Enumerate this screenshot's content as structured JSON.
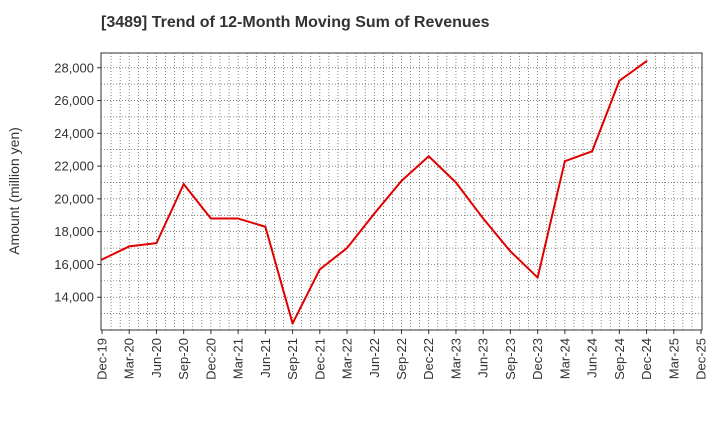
{
  "chart_data": {
    "type": "line",
    "title": "[3489]  Trend of 12-Month Moving Sum of Revenues",
    "xlabel": "",
    "ylabel": "Amount (million yen)",
    "ylim": [
      12000,
      28900
    ],
    "yticks": [
      14000,
      16000,
      18000,
      20000,
      22000,
      24000,
      26000,
      28000
    ],
    "ytick_labels": [
      "14,000",
      "16,000",
      "18,000",
      "20,000",
      "22,000",
      "24,000",
      "26,000",
      "28,000"
    ],
    "xtick_labels": [
      "Dec-19",
      "Mar-20",
      "Jun-20",
      "Sep-20",
      "Dec-20",
      "Mar-21",
      "Jun-21",
      "Sep-21",
      "Dec-21",
      "Mar-22",
      "Jun-22",
      "Sep-22",
      "Dec-22",
      "Mar-23",
      "Jun-23",
      "Sep-23",
      "Dec-23",
      "Mar-24",
      "Jun-24",
      "Sep-24",
      "Dec-24",
      "Mar-25",
      "Dec-25"
    ],
    "grid": true,
    "line_color": "#e00000",
    "series": [
      {
        "x": [
          "Dec-19",
          "Mar-20",
          "Jun-20",
          "Sep-20",
          "Dec-20",
          "Mar-21",
          "Jun-21",
          "Sep-21",
          "Dec-21",
          "Mar-22",
          "Jun-22",
          "Sep-22",
          "Dec-22",
          "Mar-23",
          "Jun-23",
          "Sep-23",
          "Dec-23",
          "Mar-24",
          "Jun-24",
          "Sep-24",
          "Dec-24"
        ],
        "values": [
          16300,
          17100,
          17300,
          20900,
          18800,
          18800,
          18300,
          12400,
          15700,
          17000,
          19100,
          21100,
          22600,
          21000,
          18800,
          16800,
          15200,
          22300,
          22900,
          27200,
          28400
        ]
      }
    ]
  }
}
